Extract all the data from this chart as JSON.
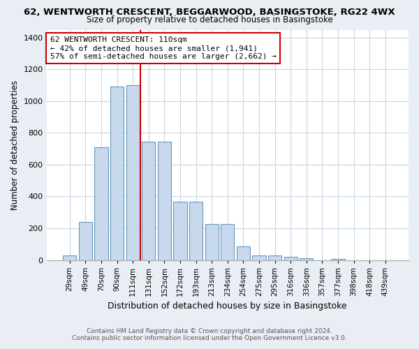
{
  "title_line1": "62, WENTWORTH CRESCENT, BEGGARWOOD, BASINGSTOKE, RG22 4WX",
  "title_line2": "Size of property relative to detached houses in Basingstoke",
  "xlabel": "Distribution of detached houses by size in Basingstoke",
  "ylabel": "Number of detached properties",
  "categories": [
    "29sqm",
    "49sqm",
    "70sqm",
    "90sqm",
    "111sqm",
    "131sqm",
    "152sqm",
    "172sqm",
    "193sqm",
    "213sqm",
    "234sqm",
    "254sqm",
    "275sqm",
    "295sqm",
    "316sqm",
    "336sqm",
    "357sqm",
    "377sqm",
    "398sqm",
    "418sqm",
    "439sqm"
  ],
  "values": [
    30,
    240,
    710,
    1090,
    1100,
    745,
    745,
    365,
    365,
    225,
    225,
    85,
    30,
    30,
    20,
    10,
    0,
    8,
    0,
    0,
    0
  ],
  "bar_color": "#c8d8ed",
  "bar_edge_color": "#6699bb",
  "property_line_x": 4.5,
  "annotation_text": "62 WENTWORTH CRESCENT: 110sqm\n← 42% of detached houses are smaller (1,941)\n57% of semi-detached houses are larger (2,662) →",
  "annotation_box_color": "#ffffff",
  "annotation_box_edge_color": "#cc0000",
  "line_color": "#cc0000",
  "ylim": [
    0,
    1450
  ],
  "yticks": [
    0,
    200,
    400,
    600,
    800,
    1000,
    1200,
    1400
  ],
  "footer_line1": "Contains HM Land Registry data © Crown copyright and database right 2024.",
  "footer_line2": "Contains public sector information licensed under the Open Government Licence v3.0.",
  "fig_bg_color": "#e8eef4",
  "plot_bg_color": "#ffffff",
  "grid_color": "#c8d4e0"
}
